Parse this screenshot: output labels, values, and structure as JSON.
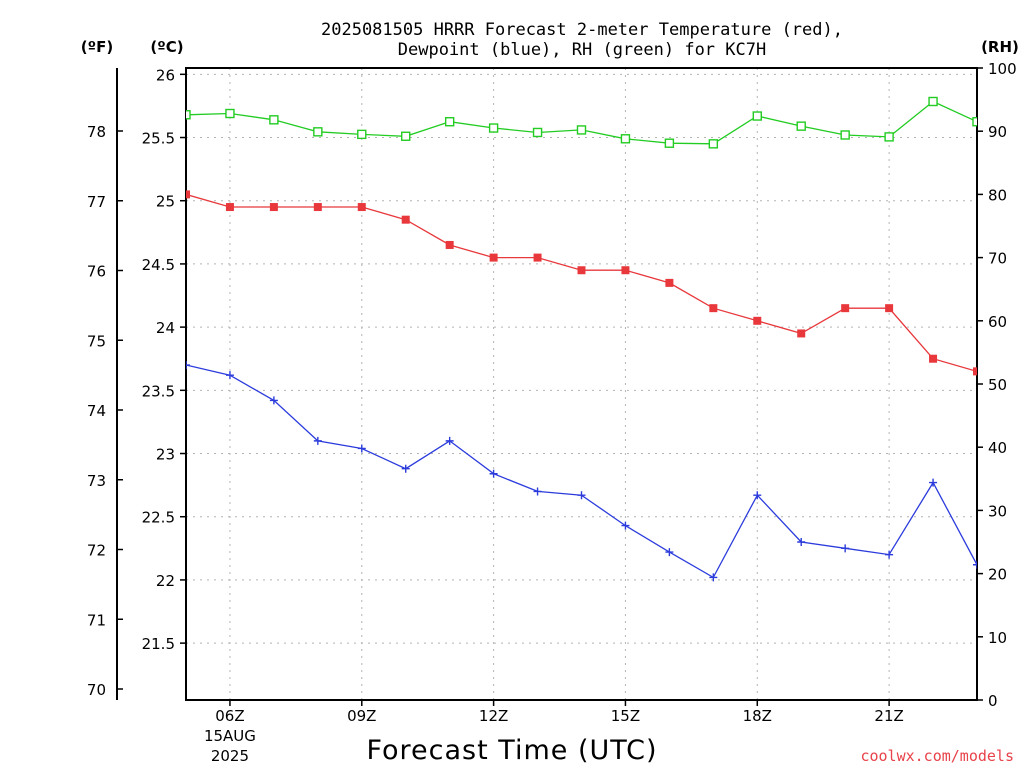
{
  "chart_data": {
    "type": "line",
    "title_lines": [
      "2025081505 HRRR Forecast 2-meter Temperature (red),",
      "Dewpoint (blue), RH (green) for KC7H"
    ],
    "xlabel": "Forecast Time (UTC)",
    "credit": "coolwx.com/models",
    "x_hours": [
      5,
      6,
      7,
      8,
      9,
      10,
      11,
      12,
      13,
      14,
      15,
      16,
      17,
      18,
      19,
      20,
      21,
      22,
      23
    ],
    "xlim": [
      5,
      23
    ],
    "x_ticks": [
      {
        "hour": 6,
        "label": "06Z",
        "sublabels": [
          "15AUG",
          "2025"
        ]
      },
      {
        "hour": 9,
        "label": "09Z",
        "sublabels": []
      },
      {
        "hour": 12,
        "label": "12Z",
        "sublabels": []
      },
      {
        "hour": 15,
        "label": "15Z",
        "sublabels": []
      },
      {
        "hour": 18,
        "label": "18Z",
        "sublabels": []
      },
      {
        "hour": 21,
        "label": "21Z",
        "sublabels": []
      }
    ],
    "axes": {
      "fahrenheit": {
        "unit_label": "(ºF)",
        "ticks": [
          "70",
          "71",
          "72",
          "73",
          "74",
          "75",
          "76",
          "77",
          "78"
        ]
      },
      "celsius": {
        "unit_label": "(ºC)",
        "ylim": [
          21.05,
          26.05
        ],
        "ticks": [
          "21.5",
          "22",
          "22.5",
          "23",
          "23.5",
          "24",
          "24.5",
          "25",
          "25.5",
          "26"
        ]
      },
      "rh": {
        "unit_label": "(RH)",
        "ylim": [
          0,
          100
        ],
        "ticks": [
          "0",
          "10",
          "20",
          "30",
          "40",
          "50",
          "60",
          "70",
          "80",
          "90",
          "100"
        ]
      }
    },
    "grid": true,
    "series": [
      {
        "key": "temperature",
        "color": "#e8383c",
        "marker": "filled-square",
        "axis": "celsius",
        "values": [
          25.05,
          24.95,
          24.95,
          24.95,
          24.95,
          24.85,
          24.65,
          24.55,
          24.55,
          24.45,
          24.45,
          24.35,
          24.15,
          24.05,
          23.95,
          24.15,
          24.15,
          23.75,
          23.65
        ]
      },
      {
        "key": "dewpoint",
        "color": "#2c3cdc",
        "marker": "plus",
        "axis": "celsius",
        "values": [
          23.7,
          23.62,
          23.42,
          23.1,
          23.04,
          22.88,
          23.1,
          22.84,
          22.7,
          22.67,
          22.43,
          22.22,
          22.02,
          22.67,
          22.3,
          22.25,
          22.2,
          22.77,
          22.12
        ]
      },
      {
        "key": "rh",
        "color": "#22cc22",
        "marker": "open-square",
        "axis": "rh",
        "values": [
          92.6,
          92.8,
          91.8,
          89.9,
          89.5,
          89.2,
          91.5,
          90.5,
          89.8,
          90.2,
          88.8,
          88.1,
          88.0,
          92.4,
          90.8,
          89.4,
          89.1,
          94.7,
          91.5
        ]
      }
    ]
  }
}
